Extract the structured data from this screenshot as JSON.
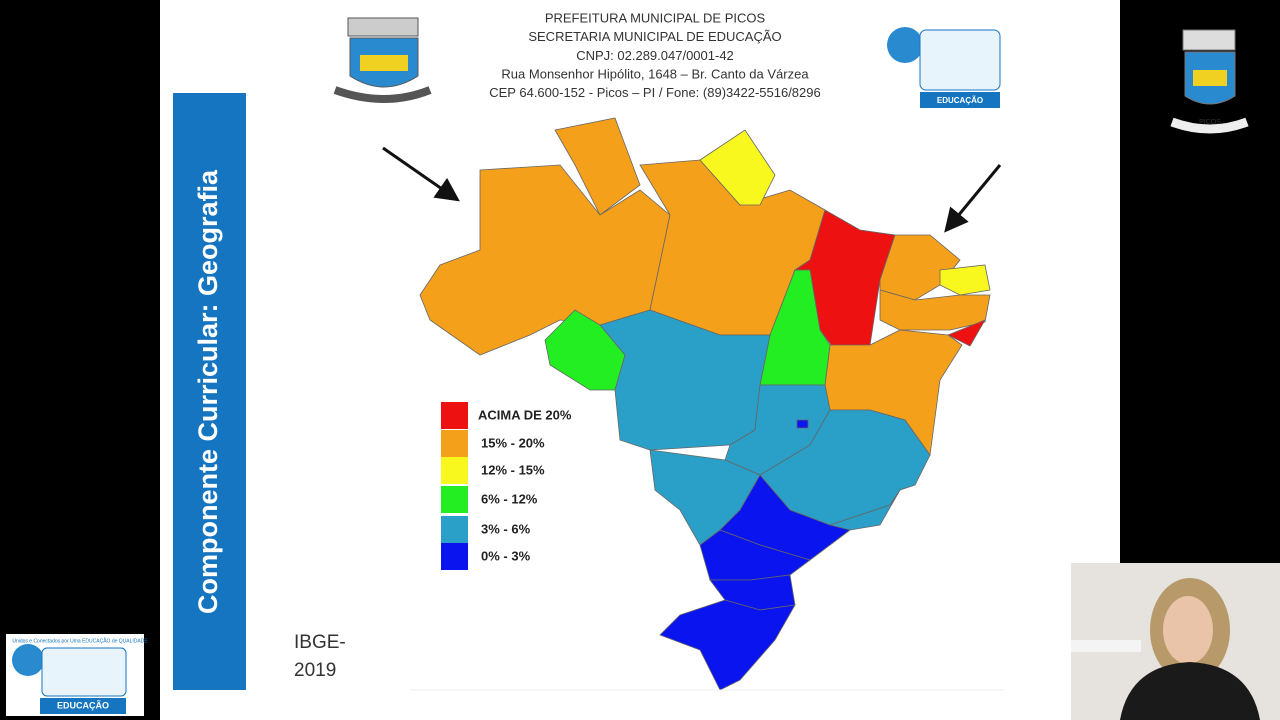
{
  "header": {
    "lines": [
      "PREFEITURA MUNICIPAL DE PICOS",
      "SECRETARIA MUNICIPAL DE EDUCAÇÃO",
      "CNPJ: 02.289.047/0001-42",
      "Rua Monsenhor Hipólito, 1648 – Br. Canto da Várzea",
      "CEP 64.600-152 - Picos – PI / Fone: (89)3422-5516/8296"
    ]
  },
  "sidebar": {
    "title": "Componente Curricular: Geografia"
  },
  "logos": {
    "city": "PICOS",
    "education_top": "Unidos e Conectados por Uma EDUCAÇÃO de QUALIDADE",
    "education_bottom": "EDUCAÇÃO"
  },
  "legend": {
    "items": [
      {
        "label": "ACIMA DE 20%",
        "color": "#ee1111"
      },
      {
        "label": "15% - 20%",
        "color": "#f5a01a"
      },
      {
        "label": "12% - 15%",
        "color": "#f8f81e"
      },
      {
        "label": "6% - 12%",
        "color": "#22ee22"
      },
      {
        "label": "3% - 6%",
        "color": "#2aa0c8"
      },
      {
        "label": "0% - 3%",
        "color": "#0a14ee"
      }
    ]
  },
  "source": {
    "lines": [
      "IBGE-",
      "2019"
    ]
  }
}
